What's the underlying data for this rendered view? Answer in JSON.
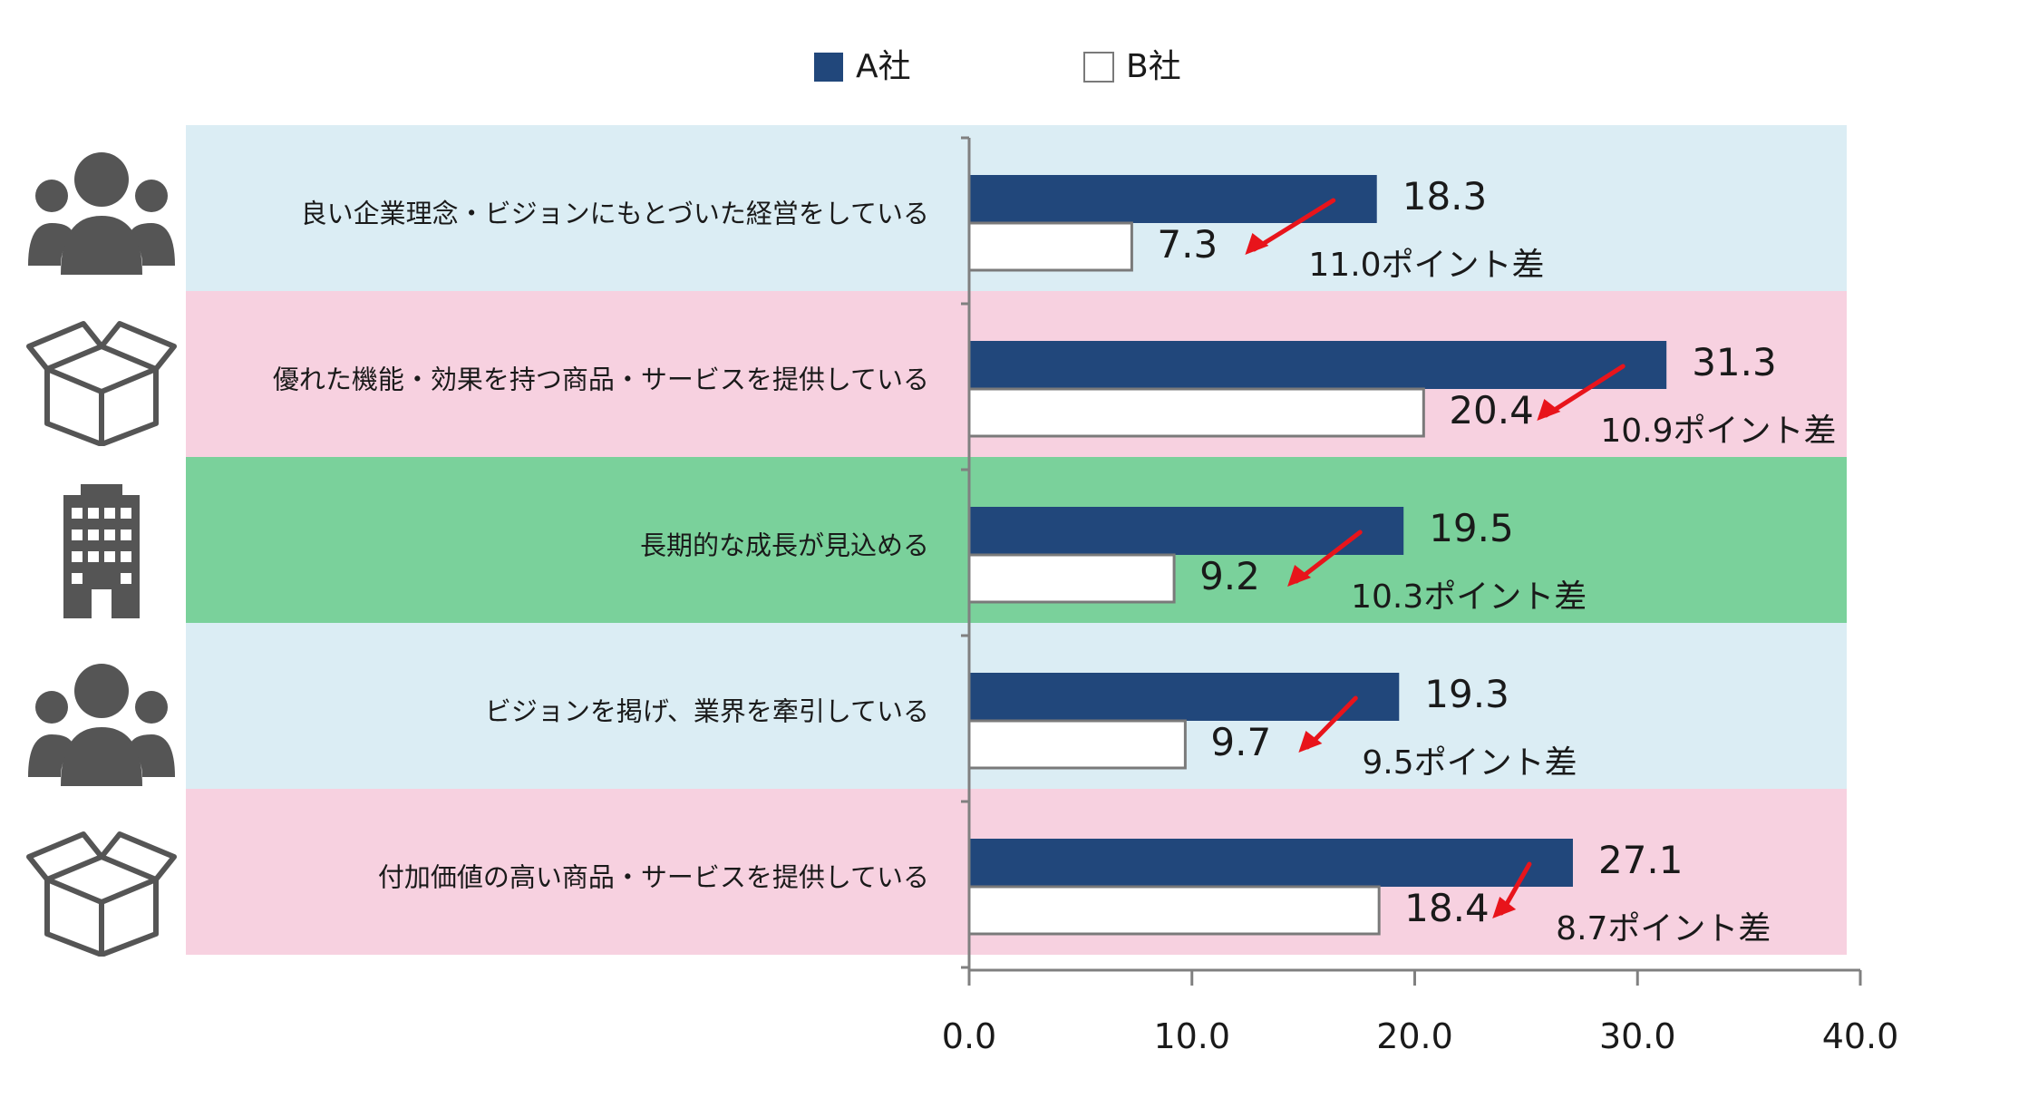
{
  "chart_data": {
    "type": "bar",
    "orientation": "horizontal",
    "title": "",
    "xlabel": "",
    "ylabel": "",
    "xlim": [
      0,
      40
    ],
    "ticks": [
      "0.0",
      "10.0",
      "20.0",
      "30.0",
      "40.0"
    ],
    "tick_values": [
      0,
      10,
      20,
      30,
      40
    ],
    "legend_placement": "top-center",
    "grid": false,
    "categories": [
      "良い企業理念・ビジョンにもとづいた経営をしている",
      "優れた機能・効果を持つ商品・サービスを提供している",
      "長期的な成長が見込める",
      "ビジョンを掲げ、業界を牽引している",
      "付加価値の高い商品・サービスを提供している"
    ],
    "series": [
      {
        "name": "A社",
        "values": [
          18.3,
          31.3,
          19.5,
          19.3,
          27.1
        ],
        "labels": [
          "18.3",
          "31.3",
          "19.5",
          "19.3",
          "27.1"
        ]
      },
      {
        "name": "B社",
        "values": [
          7.3,
          20.4,
          9.2,
          9.7,
          18.4
        ],
        "labels": [
          "7.3",
          "20.4",
          "9.2",
          "9.7",
          "18.4"
        ]
      }
    ],
    "annotations": [
      "11.0ポイント差",
      "10.9ポイント差",
      "10.3ポイント差",
      "9.5ポイント差",
      "8.7ポイント差"
    ],
    "row_backgrounds": [
      "#dbedf4",
      "#f7d1e0",
      "#7ad19b",
      "#dbedf4",
      "#f7d1e0"
    ],
    "row_icons": [
      "people-group-icon",
      "open-box-icon",
      "office-building-icon",
      "people-group-icon",
      "open-box-icon"
    ]
  },
  "colors": {
    "series_a": "#21477b",
    "series_b": "#ffffff",
    "series_b_stroke": "#7a7a7a",
    "arrow": "#e8141b",
    "axis": "#808080",
    "text": "#1a1a1a",
    "icon": "#555555"
  }
}
